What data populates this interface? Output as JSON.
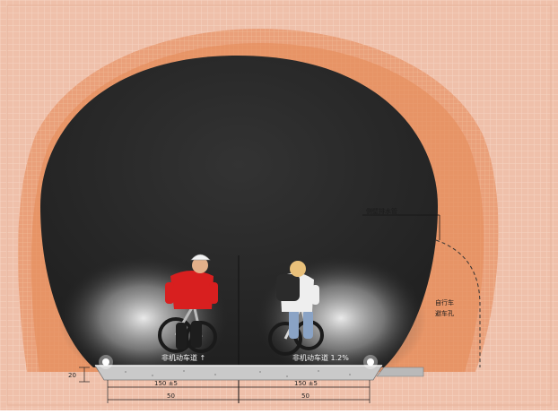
{
  "diagram": {
    "colors": {
      "background": "#efc0aa",
      "rock_grid": "#f0b79d",
      "lining_outer": "#e9a27a",
      "lining_inner": "#e6905f",
      "tunnel_dark": "#2a2a2a",
      "road_slab": "#c9c9c9",
      "light_glow": "#f3f3f3"
    },
    "annotations": {
      "pipe_label": "侧壁排水管",
      "shelter_label_line1": "自行车",
      "shelter_label_line2": "避车孔"
    },
    "lane_labels": {
      "left": "非机动车道 ↑",
      "right": "非机动车道 1.2%"
    },
    "dimensions": {
      "left_lane": "150 ±5",
      "right_lane": "150 ±5",
      "left_bottom": "50",
      "right_bottom": "50",
      "side_height": "20"
    },
    "icons": {
      "centerline": "centerline-icon",
      "cyclist_left": "cyclist-red-shirt-icon",
      "cyclist_right": "cyclist-white-shirt-icon",
      "lamp": "lamp-icon"
    }
  }
}
